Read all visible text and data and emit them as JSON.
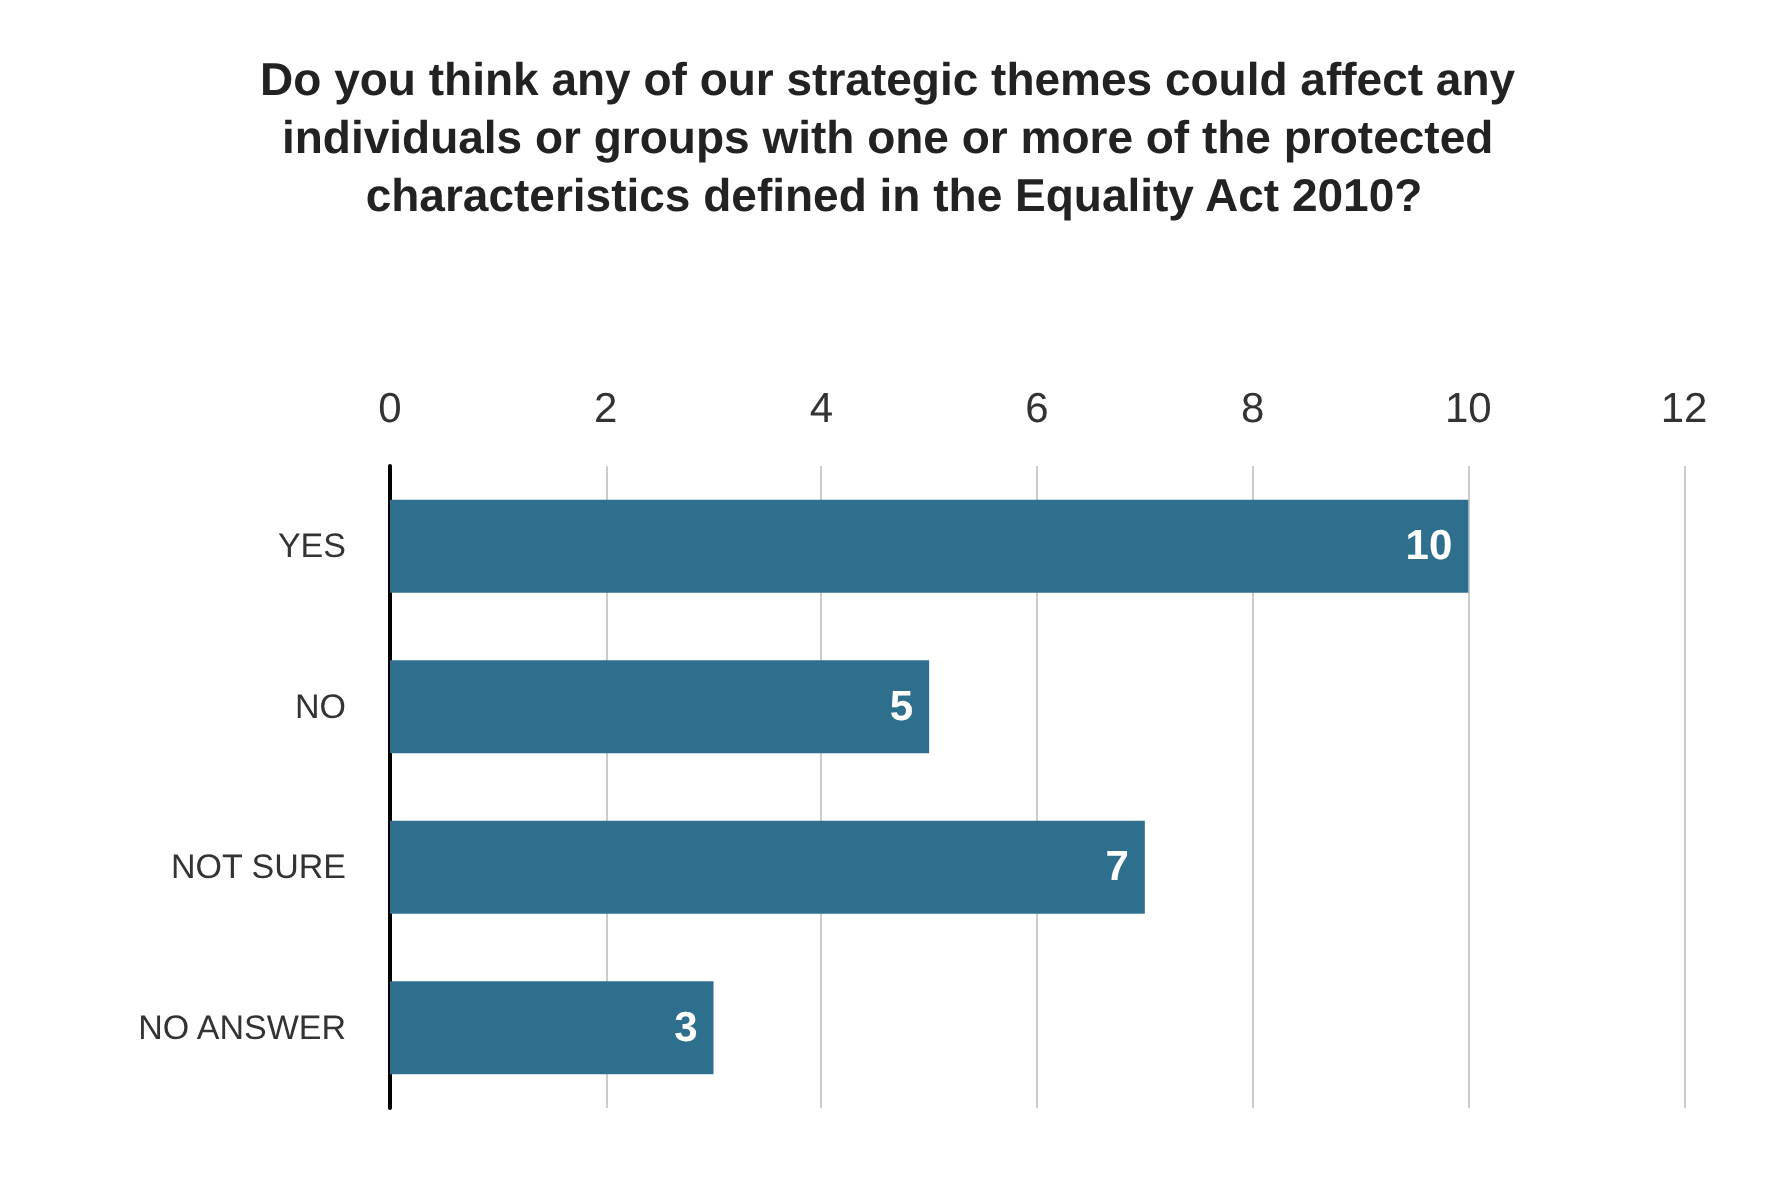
{
  "chart_data": {
    "type": "bar",
    "orientation": "horizontal",
    "title": "Do you think any of our strategic themes could affect any individuals or groups with one or more of the protected characteristics defined in the Equality Act 2010?",
    "categories": [
      "YES",
      "NO",
      "NOT SURE",
      "NO ANSWER"
    ],
    "values": [
      10,
      5,
      7,
      3
    ],
    "color": "#2e6f8e",
    "xlim": [
      0,
      12
    ],
    "xticks": [
      0,
      2,
      4,
      6,
      8,
      10,
      12
    ],
    "grid": "x",
    "data_labels": true
  }
}
